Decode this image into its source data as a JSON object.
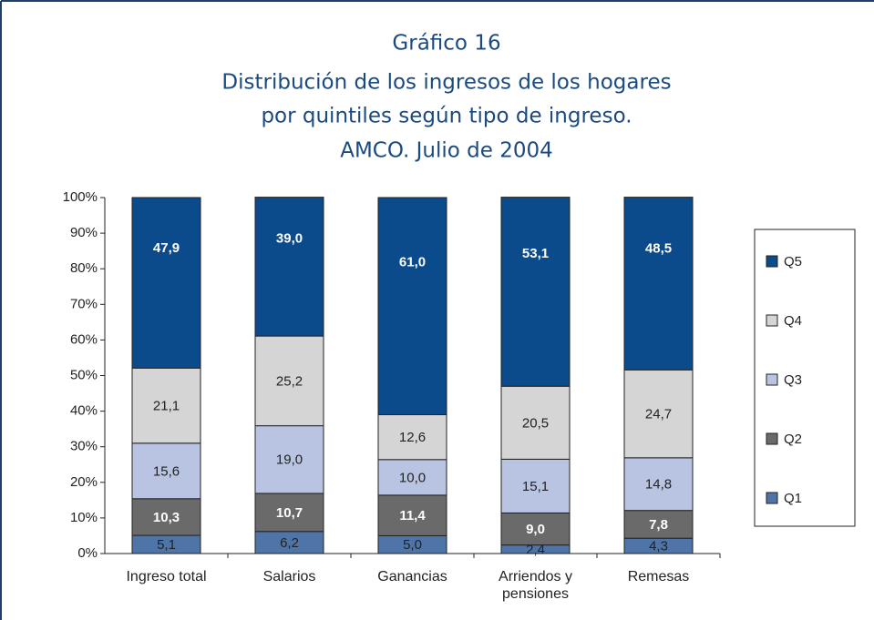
{
  "chart_data": {
    "type": "stacked_bar",
    "title": "Gráfico 16",
    "subtitle": [
      "Distribución de los ingresos de los hogares",
      "por quintiles según tipo de ingreso.",
      "AMCO. Julio de 2004"
    ],
    "categories": [
      "Ingreso total",
      "Salarios",
      "Ganancias",
      "Arriendos y pensiones",
      "Remesas"
    ],
    "series": [
      {
        "name": "Q1",
        "color": "#4f75a8",
        "label_color": "#222222",
        "values": [
          5.1,
          6.2,
          5.0,
          2.4,
          4.3
        ],
        "value_labels": [
          "5,1",
          "6,2",
          "5,0",
          "2,4",
          "4,3"
        ]
      },
      {
        "name": "Q2",
        "color": "#6a6a6a",
        "label_color": "#ffffff",
        "values": [
          10.3,
          10.7,
          11.4,
          9.0,
          7.8
        ],
        "value_labels": [
          "10,3",
          "10,7",
          "11,4",
          "9,0",
          "7,8"
        ]
      },
      {
        "name": "Q3",
        "color": "#b9c4e2",
        "label_color": "#222222",
        "values": [
          15.6,
          19.0,
          10.0,
          15.1,
          14.8
        ],
        "value_labels": [
          "15,6",
          "19,0",
          "10,0",
          "15,1",
          "14,8"
        ]
      },
      {
        "name": "Q4",
        "color": "#d5d5d5",
        "label_color": "#222222",
        "values": [
          21.1,
          25.2,
          12.6,
          20.5,
          24.7
        ],
        "value_labels": [
          "21,1",
          "25,2",
          "12,6",
          "20,5",
          "24,7"
        ]
      },
      {
        "name": "Q5",
        "color": "#0b4a8b",
        "label_color": "#ffffff",
        "values": [
          47.9,
          39.0,
          61.0,
          53.1,
          48.5
        ],
        "value_labels": [
          "47,9",
          "39,0",
          "61,0",
          "53,1",
          "48,5"
        ]
      }
    ],
    "ylim": [
      0,
      100
    ],
    "yticks": [
      {
        "value": 0,
        "label": "0%"
      },
      {
        "value": 10,
        "label": "10%"
      },
      {
        "value": 20,
        "label": "20%"
      },
      {
        "value": 30,
        "label": "30%"
      },
      {
        "value": 40,
        "label": "40%"
      },
      {
        "value": 50,
        "label": "50%"
      },
      {
        "value": 60,
        "label": "60%"
      },
      {
        "value": 70,
        "label": "70%"
      },
      {
        "value": 80,
        "label": "80%"
      },
      {
        "value": 90,
        "label": "90%"
      },
      {
        "value": 100,
        "label": "100%"
      }
    ],
    "legend": "right"
  }
}
